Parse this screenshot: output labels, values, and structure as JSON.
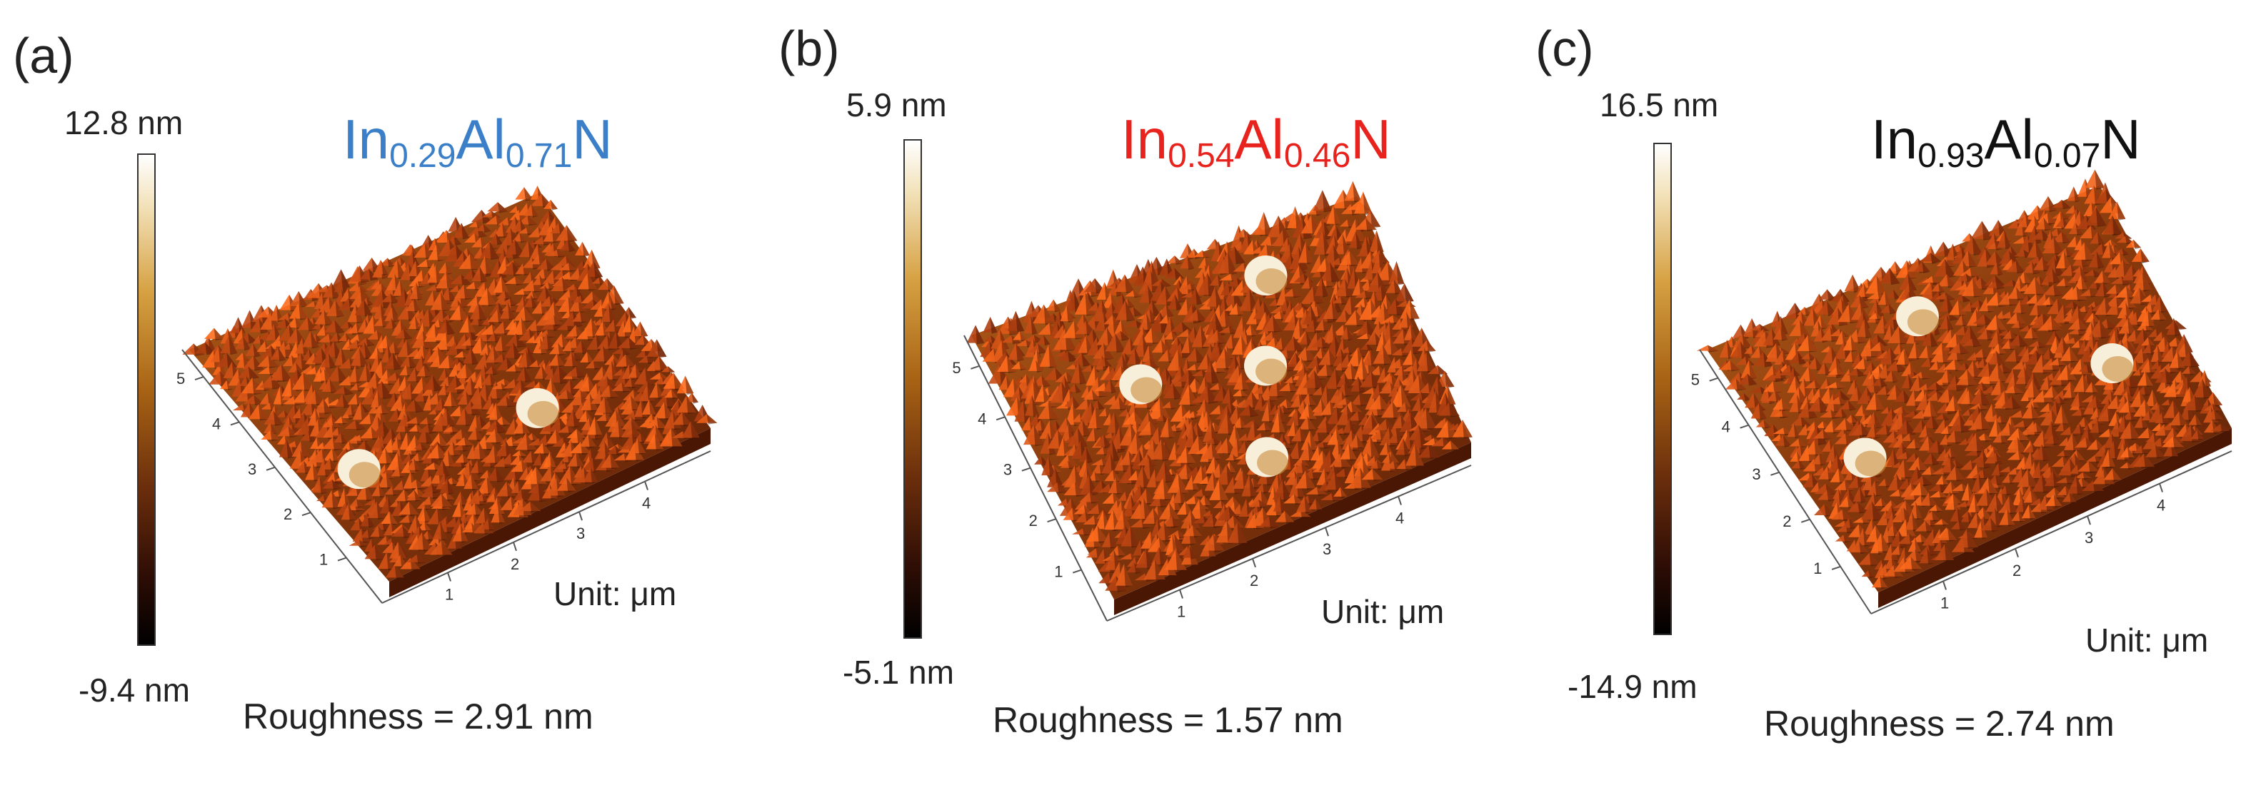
{
  "panels": [
    {
      "label": "(a)",
      "formula": {
        "a": "In",
        "a_sub": "0.29",
        "b": "Al",
        "b_sub": "0.71",
        "c": "N",
        "color": "#3a7fc7"
      },
      "scale_max": "12.8 nm",
      "scale_min": "-9.4 nm",
      "unit": "Unit:  μm",
      "roughness": "Roughness = 2.91 nm",
      "x_ticks": [
        "1",
        "2",
        "3",
        "4"
      ],
      "y_ticks": [
        "1",
        "2",
        "3",
        "4",
        "5"
      ]
    },
    {
      "label": "(b)",
      "formula": {
        "a": "In",
        "a_sub": "0.54",
        "b": "Al",
        "b_sub": "0.46",
        "c": "N",
        "color": "#e8231e"
      },
      "scale_max": "5.9 nm",
      "scale_min": "-5.1 nm",
      "unit": "Unit:  μm",
      "roughness": "Roughness = 1.57 nm",
      "x_ticks": [
        "1",
        "2",
        "3",
        "4"
      ],
      "y_ticks": [
        "1",
        "2",
        "3",
        "4",
        "5"
      ]
    },
    {
      "label": "(c)",
      "formula": {
        "a": "In",
        "a_sub": "0.93",
        "b": "Al",
        "b_sub": "0.07",
        "c": "N",
        "color": "#111111"
      },
      "scale_max": "16.5 nm",
      "scale_min": "-14.9 nm",
      "unit": "Unit:  μm",
      "roughness": "Roughness = 2.74 nm",
      "x_ticks": [
        "1",
        "2",
        "3",
        "4"
      ],
      "y_ticks": [
        "1",
        "2",
        "3",
        "4",
        "5"
      ]
    }
  ]
}
